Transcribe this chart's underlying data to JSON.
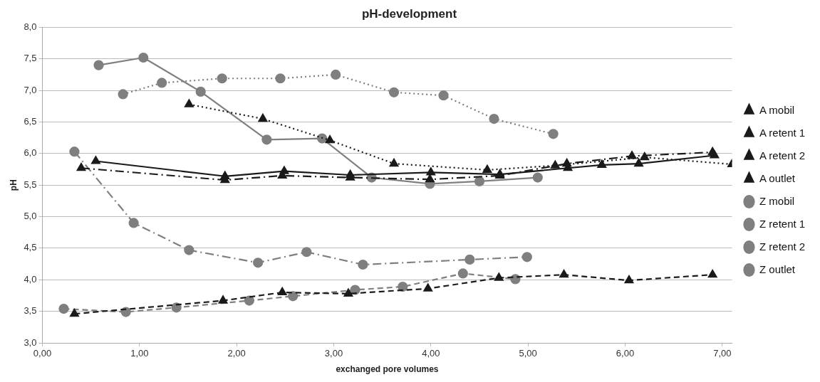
{
  "chart_data": {
    "type": "line",
    "title": "pH-development",
    "xlabel": "exchanged pore volumes",
    "ylabel": "pH",
    "xlim": [
      0,
      7.1
    ],
    "xticks": [
      {
        "value": 0,
        "label": "0,00"
      },
      {
        "value": 1,
        "label": "1,00"
      },
      {
        "value": 2,
        "label": "2,00"
      },
      {
        "value": 3,
        "label": "3,00"
      },
      {
        "value": 4,
        "label": "4,00"
      },
      {
        "value": 5,
        "label": "5,00"
      },
      {
        "value": 6,
        "label": "6,00"
      },
      {
        "value": 7,
        "label": "7,00"
      }
    ],
    "ylim": [
      3,
      8
    ],
    "yticks": [
      {
        "value": 3,
        "label": "3,0"
      },
      {
        "value": 3.5,
        "label": "3,5"
      },
      {
        "value": 4,
        "label": "4,0"
      },
      {
        "value": 4.5,
        "label": "4,5"
      },
      {
        "value": 5,
        "label": "5,0"
      },
      {
        "value": 5.5,
        "label": "5,5"
      },
      {
        "value": 6,
        "label": "6,0"
      },
      {
        "value": 6.5,
        "label": "6,5"
      },
      {
        "value": 7,
        "label": "7,0"
      },
      {
        "value": 7.5,
        "label": "7,5"
      },
      {
        "value": 8,
        "label": "8,0"
      }
    ],
    "grid": "y",
    "legend": "right",
    "series": [
      {
        "name": "A mobil",
        "color": "#1a1a1a",
        "marker": "triangle",
        "line_style": "dashed",
        "x": [
          0.33,
          1.86,
          2.47,
          3.15,
          3.97,
          4.7,
          5.37,
          6.04,
          6.9
        ],
        "values": [
          3.46,
          3.67,
          3.8,
          3.78,
          3.86,
          4.03,
          4.08,
          3.99,
          4.08
        ]
      },
      {
        "name": "A retent 1",
        "color": "#1a1a1a",
        "marker": "triangle",
        "line_style": "dashdot",
        "x": [
          0.4,
          1.88,
          2.47,
          3.17,
          3.99,
          4.71,
          5.4,
          6.07,
          6.9
        ],
        "values": [
          5.77,
          5.58,
          5.65,
          5.62,
          5.59,
          5.65,
          5.84,
          5.96,
          6.02
        ]
      },
      {
        "name": "A retent 2",
        "color": "#1a1a1a",
        "marker": "triangle",
        "line_style": "solid",
        "x": [
          0.55,
          1.88,
          2.49,
          3.17,
          4.0,
          4.71,
          5.41,
          5.76,
          6.14,
          6.92
        ],
        "values": [
          5.88,
          5.64,
          5.72,
          5.66,
          5.7,
          5.67,
          5.77,
          5.82,
          5.84,
          5.97
        ]
      },
      {
        "name": "A outlet",
        "color": "#1a1a1a",
        "marker": "triangle",
        "line_style": "dotted",
        "x": [
          1.51,
          2.27,
          2.96,
          3.62,
          4.58,
          5.28,
          6.2,
          7.1
        ],
        "values": [
          6.78,
          6.55,
          6.21,
          5.84,
          5.74,
          5.81,
          5.94,
          5.83
        ]
      },
      {
        "name": "Z mobil",
        "color": "#7f7f7f",
        "marker": "circle",
        "line_style": "dashed",
        "x": [
          0.22,
          0.86,
          1.38,
          2.13,
          2.58,
          3.22,
          3.71,
          4.33,
          4.87
        ],
        "values": [
          3.54,
          3.49,
          3.56,
          3.67,
          3.74,
          3.84,
          3.89,
          4.1,
          4.01
        ]
      },
      {
        "name": "Z retent 1",
        "color": "#7f7f7f",
        "marker": "circle",
        "line_style": "dashdot",
        "x": [
          0.33,
          0.94,
          1.51,
          2.22,
          2.72,
          3.3,
          4.4,
          4.99
        ],
        "values": [
          6.03,
          4.9,
          4.47,
          4.27,
          4.44,
          4.24,
          4.32,
          4.36
        ]
      },
      {
        "name": "Z retent 2",
        "color": "#7f7f7f",
        "marker": "circle",
        "line_style": "solid",
        "x": [
          0.58,
          1.04,
          1.63,
          2.31,
          2.88,
          3.39,
          3.99,
          4.5,
          5.1
        ],
        "values": [
          7.4,
          7.52,
          6.98,
          6.22,
          6.24,
          5.62,
          5.52,
          5.56,
          5.62
        ]
      },
      {
        "name": "Z outlet",
        "color": "#7f7f7f",
        "marker": "circle",
        "line_style": "dotted",
        "x": [
          0.83,
          1.23,
          1.85,
          2.45,
          3.02,
          3.62,
          4.13,
          4.65,
          5.26
        ],
        "values": [
          6.94,
          7.12,
          7.19,
          7.19,
          7.25,
          6.97,
          6.92,
          6.55,
          6.31
        ]
      }
    ]
  }
}
